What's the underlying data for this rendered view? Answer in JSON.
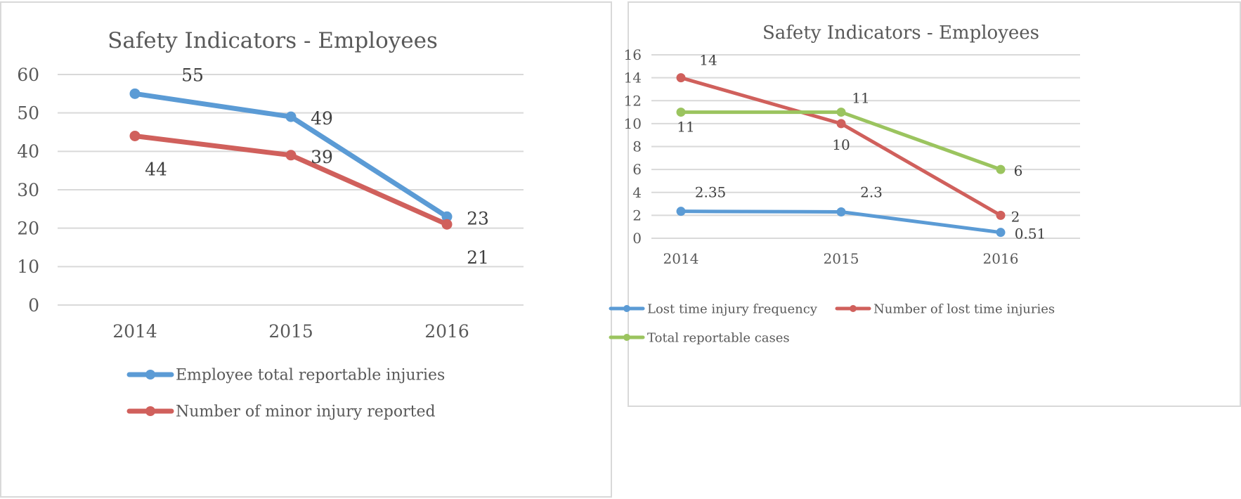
{
  "colors": {
    "blue": "#5b9bd5",
    "red": "#d0605c",
    "green": "#9bc45f",
    "grid": "#d9d9d9",
    "text": "#595959"
  },
  "chart_data": [
    {
      "type": "line",
      "title": "Safety Indicators - Employees",
      "categories": [
        "2014",
        "2015",
        "2016"
      ],
      "ylim": [
        0,
        60
      ],
      "yticks": [
        0,
        10,
        20,
        30,
        40,
        50,
        60
      ],
      "grid": true,
      "legend_position": "bottom",
      "series": [
        {
          "name": "Employee total reportable injuries",
          "values": [
            55,
            49,
            23
          ],
          "labels": [
            "55",
            "49",
            "23"
          ],
          "color": "#5b9bd5"
        },
        {
          "name": "Number of minor injury reported",
          "values": [
            44,
            39,
            21
          ],
          "labels": [
            "44",
            "39",
            "21"
          ],
          "color": "#d0605c"
        }
      ]
    },
    {
      "type": "line",
      "title": "Safety Indicators - Employees",
      "categories": [
        "2014",
        "2015",
        "2016"
      ],
      "ylim": [
        0,
        16
      ],
      "yticks": [
        0,
        2,
        4,
        6,
        8,
        10,
        12,
        14,
        16
      ],
      "grid": true,
      "legend_position": "bottom",
      "series": [
        {
          "name": "Lost time injury frequency",
          "values": [
            2.35,
            2.3,
            0.51
          ],
          "labels": [
            "2.35",
            "2.3",
            "0.51"
          ],
          "color": "#5b9bd5"
        },
        {
          "name": "Number of lost time injuries",
          "values": [
            14,
            10,
            2
          ],
          "labels": [
            "14",
            "10",
            "2"
          ],
          "color": "#d0605c"
        },
        {
          "name": "Total reportable cases",
          "values": [
            11,
            11,
            6
          ],
          "labels": [
            "11",
            "11",
            "6"
          ],
          "color": "#9bc45f"
        }
      ]
    }
  ]
}
